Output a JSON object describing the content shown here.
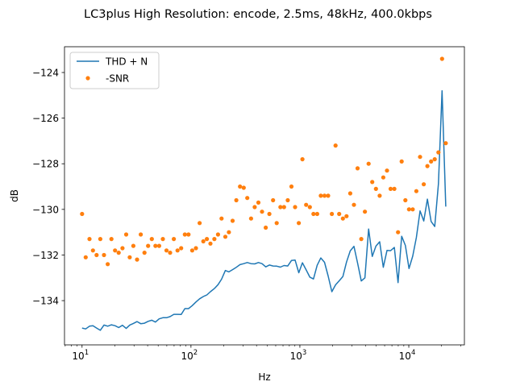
{
  "chart_data": {
    "type": "line",
    "title": "LC3plus High Resolution: encode, 2.5ms, 48kHz, 400.0kbps",
    "xlabel": "Hz",
    "ylabel": "dB",
    "xscale": "log",
    "xlim": [
      6.9,
      32400
    ],
    "ylim": [
      -135.94,
      -122.87
    ],
    "grid": false,
    "legend_position": "top-left",
    "xticks": [
      {
        "value": 10,
        "base": "10",
        "exp": "1"
      },
      {
        "value": 100,
        "base": "10",
        "exp": "2"
      },
      {
        "value": 1000,
        "base": "10",
        "exp": "3"
      },
      {
        "value": 10000,
        "base": "10",
        "exp": "4"
      }
    ],
    "yticks": [
      {
        "value": -134,
        "label": "−134"
      },
      {
        "value": -132,
        "label": "−132"
      },
      {
        "value": -130,
        "label": "−130"
      },
      {
        "value": -128,
        "label": "−128"
      },
      {
        "value": -126,
        "label": "−126"
      },
      {
        "value": -124,
        "label": "−124"
      }
    ],
    "x": [
      10,
      10.8,
      11.7,
      12.6,
      13.6,
      14.7,
      15.9,
      17.2,
      18.6,
      20.1,
      21.7,
      23.5,
      25.4,
      27.4,
      29.6,
      32.0,
      34.6,
      37.4,
      40.4,
      43.7,
      47.2,
      51.0,
      55.2,
      59.6,
      64.4,
      69.6,
      75.3,
      81.3,
      87.9,
      95.0,
      102.7,
      111,
      120,
      130,
      140,
      151,
      164,
      177,
      191,
      207,
      223,
      241,
      261,
      282,
      305,
      329,
      356,
      385,
      416,
      449,
      486,
      525,
      567,
      613,
      663,
      716,
      774,
      837,
      904,
      977,
      1056,
      1142,
      1234,
      1333,
      1441,
      1557,
      1683,
      1819,
      1966,
      2125,
      2297,
      2482,
      2683,
      2900,
      3134,
      3387,
      3661,
      3956,
      4276,
      4621,
      4995,
      5398,
      5834,
      6306,
      6815,
      7366,
      7961,
      8604,
      9299,
      10050,
      10862,
      11740,
      12688,
      13713,
      14821,
      16018,
      17312,
      18711,
      20223,
      21857
    ],
    "series": [
      {
        "name": "THD + N",
        "type": "line",
        "color": "#1f77b4",
        "values": [
          -135.2,
          -135.24,
          -135.12,
          -135.1,
          -135.2,
          -135.3,
          -135.07,
          -135.12,
          -135.06,
          -135.1,
          -135.18,
          -135.08,
          -135.22,
          -135.07,
          -135.0,
          -134.92,
          -135.01,
          -134.99,
          -134.91,
          -134.86,
          -134.94,
          -134.8,
          -134.75,
          -134.75,
          -134.7,
          -134.6,
          -134.6,
          -134.61,
          -134.35,
          -134.35,
          -134.22,
          -134.06,
          -133.92,
          -133.82,
          -133.75,
          -133.61,
          -133.47,
          -133.3,
          -133.06,
          -132.68,
          -132.74,
          -132.64,
          -132.54,
          -132.42,
          -132.38,
          -132.33,
          -132.38,
          -132.39,
          -132.33,
          -132.38,
          -132.52,
          -132.44,
          -132.48,
          -132.49,
          -132.53,
          -132.46,
          -132.48,
          -132.24,
          -132.22,
          -132.78,
          -132.34,
          -132.65,
          -132.97,
          -133.05,
          -132.45,
          -132.13,
          -132.32,
          -132.92,
          -133.61,
          -133.31,
          -133.13,
          -132.94,
          -132.31,
          -131.82,
          -131.62,
          -132.35,
          -133.14,
          -133.0,
          -130.86,
          -132.06,
          -131.61,
          -131.42,
          -132.54,
          -131.8,
          -131.81,
          -131.67,
          -133.21,
          -131.18,
          -131.58,
          -132.59,
          -132.05,
          -131.24,
          -130.07,
          -130.51,
          -129.55,
          -130.53,
          -130.75,
          -128.88,
          -124.8,
          -129.88
        ]
      },
      {
        "name": "-SNR",
        "type": "scatter",
        "color": "#ff7f0e",
        "values": [
          -130.2,
          -132.1,
          -131.3,
          -131.8,
          -132.0,
          -131.3,
          -132.0,
          -132.4,
          -131.3,
          -131.8,
          -131.9,
          -131.7,
          -131.1,
          -132.1,
          -131.6,
          -132.2,
          -131.1,
          -131.9,
          -131.6,
          -131.3,
          -131.6,
          -131.6,
          -131.3,
          -131.8,
          -131.9,
          -131.3,
          -131.8,
          -131.7,
          -131.1,
          -131.1,
          -131.8,
          -131.7,
          -130.6,
          -131.4,
          -131.3,
          -131.5,
          -131.3,
          -131.1,
          -130.4,
          -131.2,
          -131.0,
          -130.5,
          -129.6,
          -129.0,
          -129.05,
          -129.5,
          -130.4,
          -129.9,
          -129.7,
          -130.1,
          -130.8,
          -130.2,
          -129.6,
          -130.6,
          -129.9,
          -129.9,
          -129.6,
          -129.0,
          -129.9,
          -130.6,
          -127.8,
          -129.8,
          -129.9,
          -130.2,
          -130.2,
          -129.4,
          -129.4,
          -129.4,
          -130.2,
          -127.2,
          -130.2,
          -130.4,
          -130.3,
          -129.3,
          -129.8,
          -128.2,
          -131.3,
          -130.1,
          -128.0,
          -128.8,
          -129.1,
          -129.4,
          -128.6,
          -128.3,
          -129.1,
          -129.1,
          -131.0,
          -127.9,
          -129.6,
          -130.0,
          -130.0,
          -129.2,
          -127.7,
          -128.9,
          -128.1,
          -127.9,
          -127.8,
          -127.5,
          -123.4,
          -127.1
        ]
      }
    ]
  }
}
